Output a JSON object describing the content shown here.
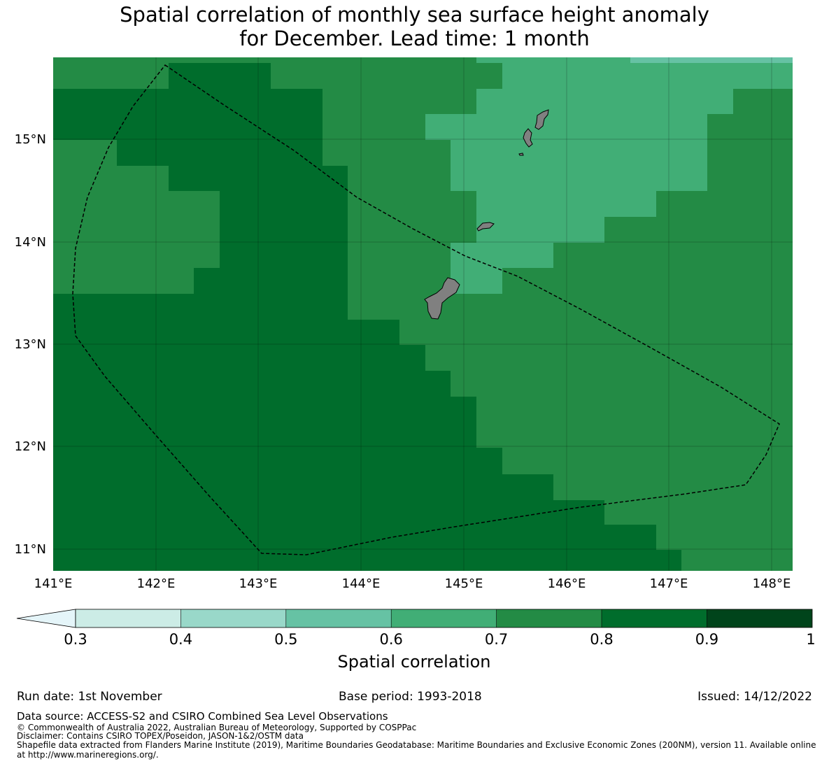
{
  "title": {
    "line1": "Spatial correlation of monthly sea surface height anomaly",
    "line2": "for December. Lead time: 1 month"
  },
  "map": {
    "lon_range": [
      141.0,
      148.2
    ],
    "lat_range": [
      10.8,
      15.8
    ],
    "lon_ticks": [
      "141°E",
      "142°E",
      "143°E",
      "144°E",
      "145°E",
      "146°E",
      "147°E",
      "148°E"
    ],
    "lat_ticks": [
      "11°N",
      "12°N",
      "13°N",
      "14°N",
      "15°N"
    ],
    "land_color": "#808080",
    "eez_boundary_style": "dashed black",
    "dominant_correlation_bands": [
      "0.6-0.7",
      "0.7-0.8",
      "0.8-0.9"
    ],
    "islands": [
      "Guam",
      "Rota",
      "Tinian",
      "Saipan"
    ]
  },
  "colorbar": {
    "title": "Spatial correlation",
    "ticks": [
      "0.3",
      "0.4",
      "0.5",
      "0.6",
      "0.7",
      "0.8",
      "0.9",
      "1"
    ],
    "colors": [
      "#e5f5f9",
      "#ccece6",
      "#99d8c9",
      "#66c2a4",
      "#41ae76",
      "#238b45",
      "#006d2c",
      "#00441b"
    ],
    "extend": "min"
  },
  "footer": {
    "run_date": "Run date: 1st November",
    "base_period": "Base period: 1993-2018",
    "issued": "Issued: 14/12/2022",
    "data_source": "Data source: ACCESS-S2 and CSIRO Combined Sea Level Observations",
    "copyright": "© Commonwealth of Australia 2022, Australian Bureau of Meteorology, Supported by COSPPac",
    "disclaimer": "Disclaimer: Contains CSIRO TOPEX/Poseidon, JASON-1&2/OSTM data",
    "shapefile_line1": "Shapefile data extracted from Flanders Marine Institute (2019), Maritime Boundaries Geodatabase: Maritime Boundaries and Exclusive Economic Zones (200NM), version 11. Available online",
    "shapefile_line2": "at http://www.marineregions.org/."
  }
}
